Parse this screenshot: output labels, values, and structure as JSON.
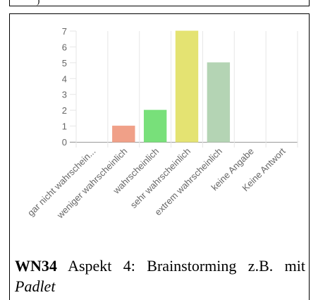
{
  "chart_data": {
    "type": "bar",
    "categories": [
      "gar nicht wahrschein...",
      "weniger wahrscheinlich",
      "wahrscheinlich",
      "sehr wahrscheinlich",
      "extrem wahrscheinlich",
      "keine Angabe",
      "Keine Antwort"
    ],
    "values": [
      0,
      1,
      2,
      7,
      5,
      0,
      0
    ],
    "colors": [
      "#f2a2a2",
      "#f0a088",
      "#78e07a",
      "#e4e372",
      "#b4d4b4",
      "#cccccc",
      "#cccccc"
    ],
    "ylim": [
      0,
      7
    ],
    "yticks": [
      0,
      1,
      2,
      3,
      4,
      5,
      6,
      7
    ],
    "title": "",
    "xlabel": "",
    "ylabel": "",
    "grid": true
  },
  "caption": {
    "id": "WN34",
    "text": "Aspekt 4: Brainstorming z.B. mit",
    "tool": "Padlet"
  }
}
